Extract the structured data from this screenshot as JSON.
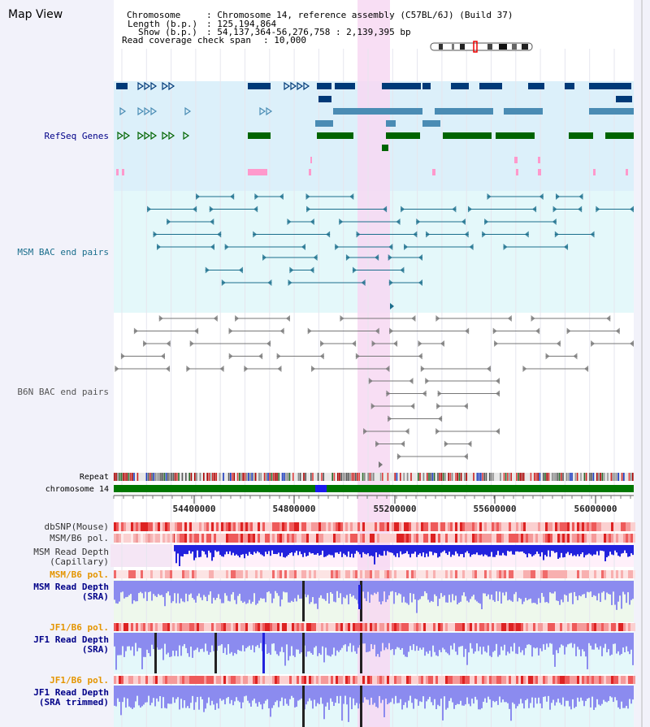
{
  "title": "Map View",
  "info": {
    "chromosome_label": "Chromosome",
    "chromosome_value": ": Chromosome 14, reference assembly (C57BL/6J) (Build 37)",
    "length_label": "Length (b.p.)",
    "length_value": ": 125,194,864",
    "show_label": "Show (b.p.)",
    "show_value": ": 54,137,364-56,276,758 : 2,139,395 bp",
    "coverage_label": "Read coverage check span",
    "coverage_value": ": 10,000"
  },
  "tracks": {
    "refseq": "RefSeq Genes",
    "msm_bac": "MSM BAC end pairs",
    "b6n_bac": "B6N BAC end pairs",
    "repeat": "Repeat",
    "chromosome": "chromosome 14",
    "dbsnp": "dbSNP(Mouse)",
    "msm_pol": "MSM/B6 pol.",
    "msm_depth_cap_1": "MSM Read Depth",
    "msm_depth_cap_2": "(Capillary)",
    "msm_pol2": "MSM/B6 pol.",
    "msm_depth_sra_1": "MSM Read Depth",
    "msm_depth_sra_2": "(SRA)",
    "jf1_pol": "JF1/B6 pol.",
    "jf1_depth_sra_1": "JF1 Read Depth",
    "jf1_depth_sra_2": "(SRA)",
    "jf1_pol2": "JF1/B6 pol.",
    "jf1_depth_trim_1": "JF1 Read Depth",
    "jf1_depth_trim_2": "(SRA trimmed)"
  },
  "axis": {
    "ticks": [
      "54400000",
      "54800000",
      "55200000",
      "55600000",
      "56000000"
    ]
  },
  "colors": {
    "refseq_bg": "#dcf0fa",
    "msm_bg": "#e4f8fa",
    "highlight": "#f7d8f2",
    "gene_dark": "#003a78",
    "gene_mid": "#4a8cb4",
    "gene_green": "#006400",
    "gene_pink": "#ff99cc",
    "bac_teal": "#1a6e8c",
    "bac_grey": "#777777",
    "label_navy": "#000088",
    "label_teal": "#1a6e8c",
    "label_orange": "#e49500",
    "label_dark": "#333333",
    "depth_blue": "#2222dd",
    "depth_light": "#8b8bef",
    "chrom_green": "#007700",
    "chrom_blue": "#1a1aee"
  }
}
